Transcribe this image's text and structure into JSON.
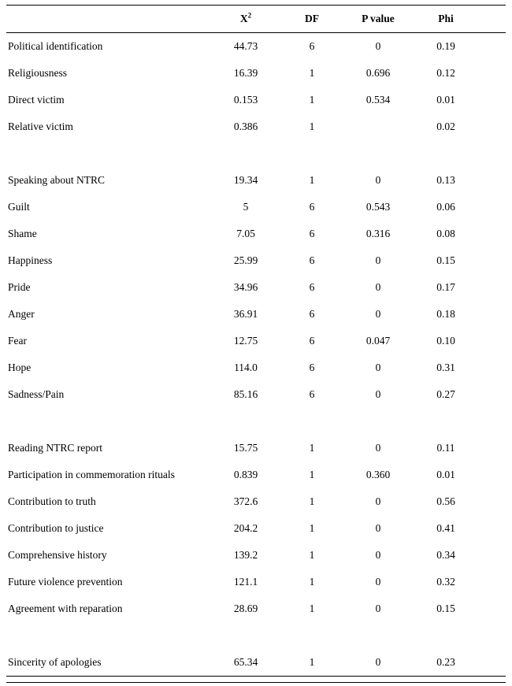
{
  "table": {
    "header": {
      "x2_base": "X",
      "x2_sup": "2",
      "df": "DF",
      "p": "P value",
      "phi": "Phi"
    },
    "rows": [
      {
        "label": "Political identification",
        "x2": "44.73",
        "df": "6",
        "p": "0",
        "phi": "0.19"
      },
      {
        "label": "Religiousness",
        "x2": "16.39",
        "df": "1",
        "p": "0.696",
        "phi": "0.12"
      },
      {
        "label": "Direct victim",
        "x2": "0.153",
        "df": "1",
        "p": "0.534",
        "phi": "0.01"
      },
      {
        "label": "Relative victim",
        "x2": "0.386",
        "df": "1",
        "p": "",
        "phi": "0.02"
      },
      {
        "spacer": true
      },
      {
        "label": "Speaking about NTRC",
        "x2": "19.34",
        "df": "1",
        "p": "0",
        "phi": "0.13"
      },
      {
        "label": "Guilt",
        "x2": "5",
        "df": "6",
        "p": "0.543",
        "phi": "0.06"
      },
      {
        "label": "Shame",
        "x2": "7.05",
        "df": "6",
        "p": "0.316",
        "phi": "0.08"
      },
      {
        "label": "Happiness",
        "x2": "25.99",
        "df": "6",
        "p": "0",
        "phi": "0.15"
      },
      {
        "label": "Pride",
        "x2": "34.96",
        "df": "6",
        "p": "0",
        "phi": "0.17"
      },
      {
        "label": "Anger",
        "x2": "36.91",
        "df": "6",
        "p": "0",
        "phi": "0.18"
      },
      {
        "label": "Fear",
        "x2": "12.75",
        "df": "6",
        "p": "0.047",
        "phi": "0.10"
      },
      {
        "label": "Hope",
        "x2": "114.0",
        "df": "6",
        "p": "0",
        "phi": "0.31"
      },
      {
        "label": "Sadness/Pain",
        "x2": "85.16",
        "df": "6",
        "p": "0",
        "phi": "0.27"
      },
      {
        "spacer": true
      },
      {
        "label": "Reading NTRC report",
        "x2": "15.75",
        "df": "1",
        "p": "0",
        "phi": "0.11"
      },
      {
        "label": "Participation in commemoration rituals",
        "x2": "0.839",
        "df": "1",
        "p": "0.360",
        "phi": "0.01"
      },
      {
        "label": "Contribution to truth",
        "x2": "372.6",
        "df": "1",
        "p": "0",
        "phi": "0.56"
      },
      {
        "label": "Contribution to justice",
        "x2": "204.2",
        "df": "1",
        "p": "0",
        "phi": "0.41"
      },
      {
        "label": "Comprehensive history",
        "x2": "139.2",
        "df": "1",
        "p": "0",
        "phi": "0.34"
      },
      {
        "label": "Future violence prevention",
        "x2": "121.1",
        "df": "1",
        "p": "0",
        "phi": "0.32"
      },
      {
        "label": "Agreement with reparation",
        "x2": "28.69",
        "df": "1",
        "p": "0",
        "phi": "0.15"
      },
      {
        "spacer": true
      },
      {
        "label": "Sincerity of apologies",
        "x2": "65.34",
        "df": "1",
        "p": "0",
        "phi": "0.23"
      }
    ]
  }
}
